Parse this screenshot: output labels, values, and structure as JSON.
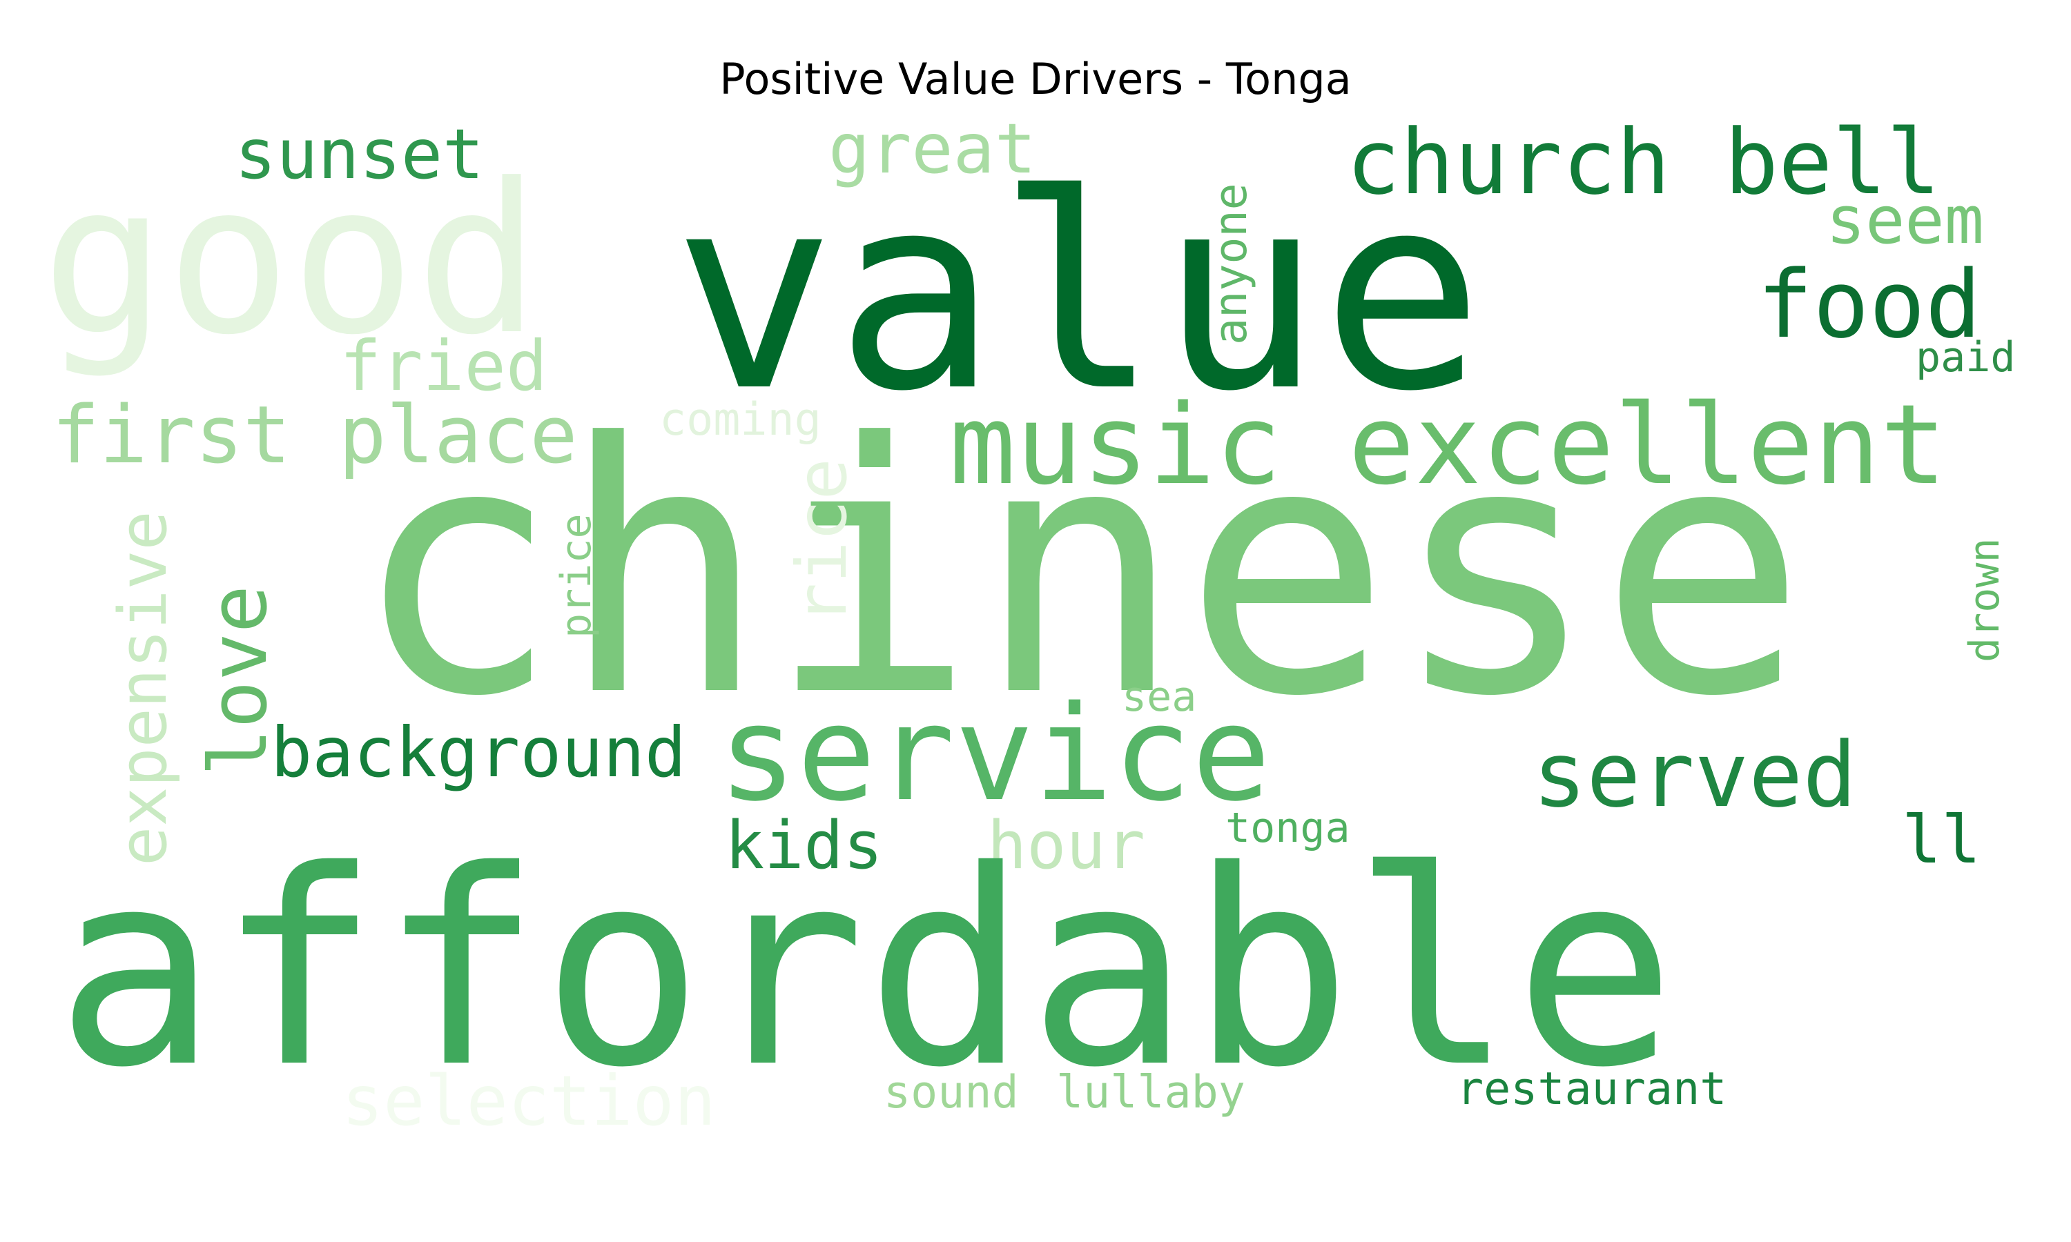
{
  "title": "Positive Value Drivers - Tonga",
  "palette": "Greens",
  "words": [
    {
      "text": "good",
      "color": "#e5f5e0"
    },
    {
      "text": "value",
      "color": "#00692a"
    },
    {
      "text": "sunset",
      "color": "#2f974e"
    },
    {
      "text": "great",
      "color": "#a9dca3"
    },
    {
      "text": "church bell",
      "color": "#117b38"
    },
    {
      "text": "seem",
      "color": "#78c679"
    },
    {
      "text": "food",
      "color": "#0b6e31"
    },
    {
      "text": "anyone",
      "color": "#5fb769"
    },
    {
      "text": "fried",
      "color": "#b8e3b2"
    },
    {
      "text": "paid",
      "color": "#2e8e48"
    },
    {
      "text": "first place",
      "color": "#a5d99f"
    },
    {
      "text": "coming",
      "color": "#e2f3dd"
    },
    {
      "text": "music excellent",
      "color": "#69bd6c"
    },
    {
      "text": "chinese",
      "color": "#7bc87c"
    },
    {
      "text": "expensive",
      "color": "#c9eac2"
    },
    {
      "text": "love",
      "color": "#64b96a"
    },
    {
      "text": "price",
      "color": "#8ace88"
    },
    {
      "text": "rice",
      "color": "#e5f5e0"
    },
    {
      "text": "drown",
      "color": "#63ba69"
    },
    {
      "text": "sea",
      "color": "#8bcf89"
    },
    {
      "text": "background",
      "color": "#157f3b"
    },
    {
      "text": "service",
      "color": "#56b567"
    },
    {
      "text": "served",
      "color": "#1f8742"
    },
    {
      "text": "kids",
      "color": "#248c45"
    },
    {
      "text": "hour",
      "color": "#c3e7bb"
    },
    {
      "text": "tonga",
      "color": "#4fb060"
    },
    {
      "text": "ll",
      "color": "#0f7535"
    },
    {
      "text": "affordable",
      "color": "#3fa95c"
    },
    {
      "text": "selection",
      "color": "#f3fbf0"
    },
    {
      "text": "sound",
      "color": "#a0d797"
    },
    {
      "text": "lullaby",
      "color": "#94d28f"
    },
    {
      "text": "restaurant",
      "color": "#1a843f"
    }
  ]
}
